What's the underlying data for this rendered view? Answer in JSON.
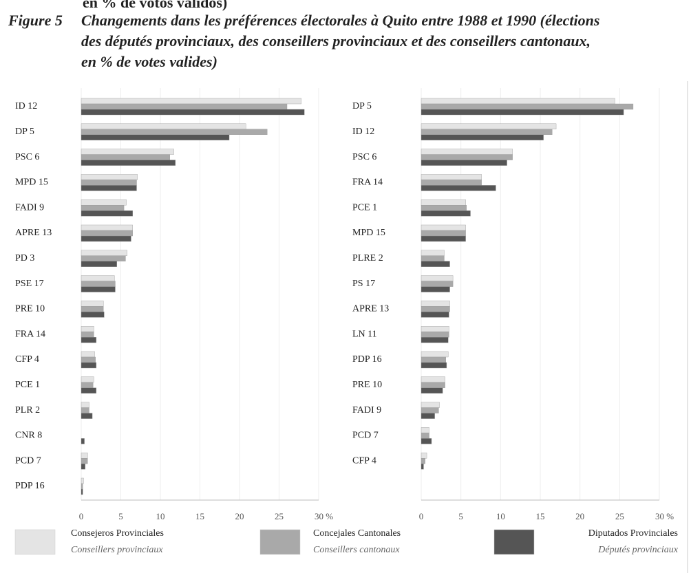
{
  "header": {
    "cut_line": "en % de votos validos)",
    "figure_label": "Figure 5",
    "title_lines": [
      "Changements dans les préférences électorales à Quito entre 1988 et 1990 (élections",
      "des députés provinciaux, des conseillers provinciaux et des conseillers cantonaux,",
      "en % de votes valides)"
    ]
  },
  "chart_data": [
    {
      "type": "barh",
      "categories": [
        "ID 12",
        "DP 5",
        "PSC 6",
        "MPD 15",
        "FADI 9",
        "APRE 13",
        "PD 3",
        "PSE 17",
        "PRE 10",
        "FRA 14",
        "CFP 4",
        "PCE 1",
        "PLR 2",
        "CNR 8",
        "PCD 7",
        "PDP 16"
      ],
      "series": [
        {
          "name": "Consejeros Provinciales",
          "name_fr": "Conseillers provinciaux",
          "color": "#e4e4e4",
          "values": [
            27.8,
            20.8,
            11.7,
            7.1,
            5.7,
            6.5,
            5.8,
            4.2,
            2.8,
            1.6,
            1.7,
            1.6,
            1.0,
            0,
            0.8,
            0.3
          ]
        },
        {
          "name": "Concejales Cantonales",
          "name_fr": "Conseillers cantonaux",
          "color": "#a9a9a9",
          "values": [
            26.0,
            23.5,
            11.2,
            7.0,
            5.4,
            6.5,
            5.6,
            4.3,
            2.8,
            1.6,
            1.8,
            1.5,
            1.0,
            0,
            0.8,
            0.2
          ]
        },
        {
          "name": "Diputados Provinciales",
          "name_fr": "Députés provinciaux",
          "color": "#555555",
          "values": [
            28.2,
            18.7,
            11.9,
            7.0,
            6.5,
            6.3,
            4.5,
            4.3,
            2.9,
            1.9,
            1.9,
            1.9,
            1.4,
            0.4,
            0.5,
            0.2
          ]
        }
      ],
      "xlim": [
        0,
        30
      ],
      "xticks": [
        0,
        5,
        10,
        15,
        20,
        25,
        {
          "value": 30,
          "label": "30 %"
        }
      ]
    },
    {
      "type": "barh",
      "categories": [
        "DP 5",
        "ID 12",
        "PSC 6",
        "FRA 14",
        "PCE 1",
        "MPD 15",
        "PLRE 2",
        "PS 17",
        "APRE 13",
        "LN 11",
        "PDP 16",
        "PRE 10",
        "FADI 9",
        "PCD 7",
        "CFP 4"
      ],
      "series": [
        {
          "color": "#e4e4e4",
          "values": [
            24.4,
            17.0,
            11.5,
            7.6,
            5.6,
            5.6,
            2.9,
            4.0,
            3.6,
            3.5,
            3.4,
            3.0,
            2.3,
            1.0,
            0.7
          ]
        },
        {
          "color": "#a9a9a9",
          "values": [
            26.7,
            16.5,
            11.5,
            7.6,
            5.7,
            5.6,
            2.9,
            4.0,
            3.6,
            3.5,
            3.1,
            3.0,
            2.2,
            1.0,
            0.5
          ]
        },
        {
          "color": "#555555",
          "values": [
            25.5,
            15.4,
            10.8,
            9.4,
            6.2,
            5.6,
            3.6,
            3.6,
            3.5,
            3.4,
            3.2,
            2.7,
            1.7,
            1.3,
            0.3
          ]
        }
      ],
      "xlim": [
        0,
        30
      ],
      "xticks": [
        0,
        5,
        10,
        15,
        20,
        25,
        {
          "value": 30,
          "label": "30 %"
        }
      ]
    }
  ]
}
